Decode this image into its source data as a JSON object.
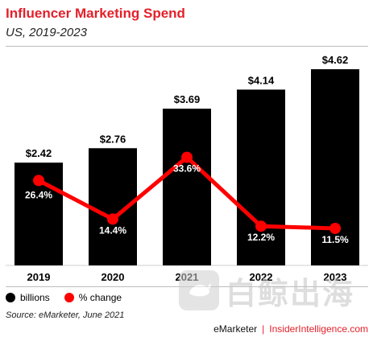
{
  "header": {
    "title": "Influencer Marketing Spend",
    "subtitle": "US, 2019-2023"
  },
  "legend": {
    "billions": "billions",
    "pct_change": "% change"
  },
  "source": "Source: eMarketer, June 2021",
  "footer": {
    "brand1": "eMarketer",
    "separator": "|",
    "brand2": "InsiderIntelligence.com"
  },
  "watermark": {
    "text": "白鲸出海"
  },
  "colors": {
    "accent": "#e4202a",
    "bar": "#000000",
    "line": "#ff0000"
  },
  "chart_data": {
    "type": "bar",
    "title": "Influencer Marketing Spend",
    "subtitle": "US, 2019-2023",
    "categories": [
      "2019",
      "2020",
      "2021",
      "2022",
      "2023"
    ],
    "series": [
      {
        "name": "billions",
        "type": "bar",
        "values": [
          2.42,
          2.76,
          3.69,
          4.14,
          4.62
        ],
        "labels": [
          "$2.42",
          "$2.76",
          "$3.69",
          "$4.14",
          "$4.62"
        ]
      },
      {
        "name": "% change",
        "type": "line",
        "values": [
          26.4,
          14.4,
          33.6,
          12.2,
          11.5
        ],
        "labels": [
          "26.4%",
          "14.4%",
          "33.6%",
          "12.2%",
          "11.5%"
        ]
      }
    ],
    "ylim": [
      0,
      5
    ],
    "y2lim": [
      0,
      40
    ],
    "grid": false,
    "legend": "bottom-left"
  }
}
